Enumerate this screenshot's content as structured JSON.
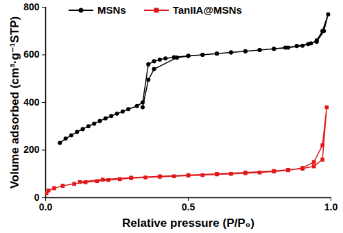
{
  "chart_data": {
    "type": "line",
    "x_label": "Relative pressure (P/P₀)",
    "y_label": "Volume adsorbed (cm³·g⁻¹STP)",
    "xlim": [
      0,
      1.0
    ],
    "ylim": [
      0,
      800
    ],
    "xticks": [
      {
        "value": 0,
        "label": "0.0"
      },
      0.5,
      {
        "value": 1.0,
        "label": "1.0"
      }
    ],
    "yticks": [
      0,
      200,
      400,
      600,
      800
    ],
    "legend": "top",
    "grid": false,
    "series": [
      {
        "name": "MSNs",
        "color": "#000000",
        "marker": "circle",
        "x": [
          0.05,
          0.07,
          0.09,
          0.11,
          0.13,
          0.15,
          0.17,
          0.19,
          0.21,
          0.23,
          0.25,
          0.27,
          0.29,
          0.32,
          0.34,
          0.36,
          0.38,
          0.4,
          0.42,
          0.45,
          0.5,
          0.55,
          0.6,
          0.65,
          0.7,
          0.75,
          0.8,
          0.85,
          0.9,
          0.93,
          0.95,
          0.97,
          0.99,
          0.975,
          0.95,
          0.92,
          0.88,
          0.84,
          0.8,
          0.75,
          0.7,
          0.65,
          0.6,
          0.55,
          0.5,
          0.46,
          0.38,
          0.36,
          0.34
        ],
        "values": [
          230,
          248,
          262,
          276,
          288,
          300,
          311,
          322,
          333,
          343,
          353,
          362,
          372,
          385,
          400,
          560,
          573,
          580,
          585,
          590,
          596,
          600,
          605,
          610,
          615,
          620,
          625,
          630,
          638,
          648,
          660,
          700,
          770,
          700,
          655,
          645,
          637,
          630,
          625,
          620,
          615,
          610,
          605,
          600,
          595,
          588,
          540,
          495,
          380
        ]
      },
      {
        "name": "TanIIA@MSNs",
        "color": "#e0191c",
        "marker": "square",
        "x": [
          0.003,
          0.01,
          0.03,
          0.06,
          0.1,
          0.14,
          0.18,
          0.22,
          0.26,
          0.3,
          0.35,
          0.4,
          0.45,
          0.5,
          0.55,
          0.6,
          0.65,
          0.7,
          0.75,
          0.8,
          0.85,
          0.9,
          0.94,
          0.97,
          0.985,
          0.97,
          0.94,
          0.9,
          0.85,
          0.8,
          0.7,
          0.6,
          0.5,
          0.4,
          0.3,
          0.2,
          0.12
        ],
        "values": [
          18,
          30,
          40,
          50,
          58,
          65,
          70,
          74,
          78,
          82,
          85,
          88,
          90,
          93,
          95,
          98,
          100,
          103,
          106,
          110,
          115,
          125,
          150,
          220,
          380,
          160,
          132,
          122,
          117,
          112,
          106,
          100,
          95,
          90,
          84,
          76,
          66
        ]
      }
    ]
  }
}
